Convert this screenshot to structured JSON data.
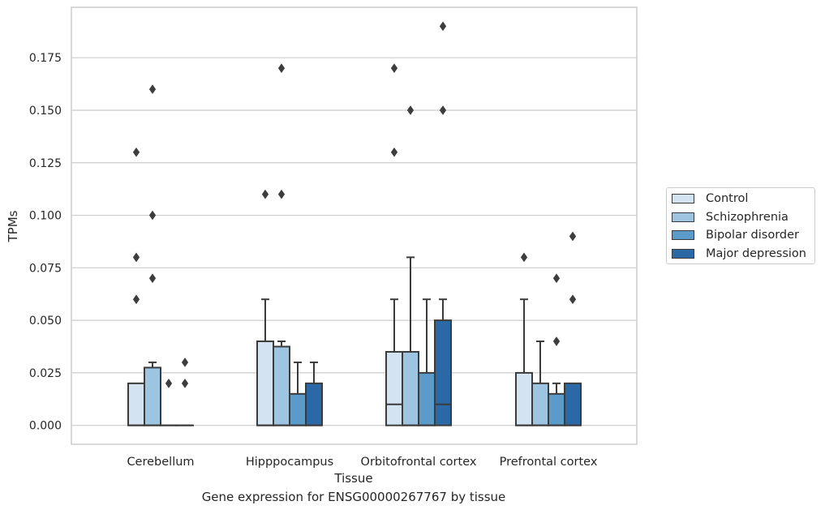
{
  "chart_data": {
    "type": "box",
    "xlabel": "Tissue",
    "ylabel": "TPMs",
    "caption": "Gene expression for ENSG00000267767 by tissue",
    "categories": [
      "Cerebellum",
      "Hipppocampus",
      "Orbitofrontal cortex",
      "Prefrontal cortex"
    ],
    "y_ticks": [
      "0.000",
      "0.025",
      "0.050",
      "0.075",
      "0.100",
      "0.125",
      "0.150",
      "0.175"
    ],
    "ylim": [
      -0.009,
      0.199
    ],
    "grid": true,
    "legend_position": "right",
    "series": [
      {
        "name": "Control",
        "color": "#d3e3f1",
        "boxes": [
          {
            "q1": 0.0,
            "median": 0.0,
            "q3": 0.02,
            "whisker_low": 0.0,
            "whisker_high": 0.02,
            "outliers": [
              0.13,
              0.08,
              0.06
            ]
          },
          {
            "q1": 0.0,
            "median": 0.0,
            "q3": 0.04,
            "whisker_low": 0.0,
            "whisker_high": 0.06,
            "outliers": [
              0.11
            ]
          },
          {
            "q1": 0.0,
            "median": 0.01,
            "q3": 0.035,
            "whisker_low": 0.0,
            "whisker_high": 0.06,
            "outliers": [
              0.17,
              0.13
            ]
          },
          {
            "q1": 0.0,
            "median": 0.0,
            "q3": 0.025,
            "whisker_low": 0.0,
            "whisker_high": 0.06,
            "outliers": [
              0.08
            ]
          }
        ]
      },
      {
        "name": "Schizophrenia",
        "color": "#9dc4e0",
        "boxes": [
          {
            "q1": 0.0,
            "median": 0.0,
            "q3": 0.0275,
            "whisker_low": 0.0,
            "whisker_high": 0.03,
            "outliers": [
              0.16,
              0.1,
              0.07
            ]
          },
          {
            "q1": 0.0,
            "median": 0.0,
            "q3": 0.0375,
            "whisker_low": 0.0,
            "whisker_high": 0.04,
            "outliers": [
              0.17,
              0.11
            ]
          },
          {
            "q1": 0.0,
            "median": 0.0,
            "q3": 0.035,
            "whisker_low": 0.0,
            "whisker_high": 0.08,
            "outliers": [
              0.15
            ]
          },
          {
            "q1": 0.0,
            "median": 0.0,
            "q3": 0.02,
            "whisker_low": 0.0,
            "whisker_high": 0.04,
            "outliers": []
          }
        ]
      },
      {
        "name": "Bipolar disorder",
        "color": "#5b9bc9",
        "boxes": [
          {
            "q1": 0.0,
            "median": 0.0,
            "q3": 0.0,
            "whisker_low": 0.0,
            "whisker_high": 0.0,
            "outliers": [
              0.02
            ]
          },
          {
            "q1": 0.0,
            "median": 0.0,
            "q3": 0.015,
            "whisker_low": 0.0,
            "whisker_high": 0.03,
            "outliers": []
          },
          {
            "q1": 0.0,
            "median": 0.0,
            "q3": 0.025,
            "whisker_low": 0.0,
            "whisker_high": 0.06,
            "outliers": []
          },
          {
            "q1": 0.0,
            "median": 0.0,
            "q3": 0.015,
            "whisker_low": 0.0,
            "whisker_high": 0.02,
            "outliers": [
              0.07,
              0.04
            ]
          }
        ]
      },
      {
        "name": "Major depression",
        "color": "#2a69a6",
        "boxes": [
          {
            "q1": 0.0,
            "median": 0.0,
            "q3": 0.0,
            "whisker_low": 0.0,
            "whisker_high": 0.0,
            "outliers": [
              0.03,
              0.02
            ]
          },
          {
            "q1": 0.0,
            "median": 0.0,
            "q3": 0.02,
            "whisker_low": 0.0,
            "whisker_high": 0.03,
            "outliers": []
          },
          {
            "q1": 0.0,
            "median": 0.01,
            "q3": 0.05,
            "whisker_low": 0.0,
            "whisker_high": 0.06,
            "outliers": [
              0.19,
              0.15
            ]
          },
          {
            "q1": 0.0,
            "median": 0.0,
            "q3": 0.02,
            "whisker_low": 0.0,
            "whisker_high": 0.02,
            "outliers": [
              0.09,
              0.06
            ]
          }
        ]
      }
    ]
  }
}
